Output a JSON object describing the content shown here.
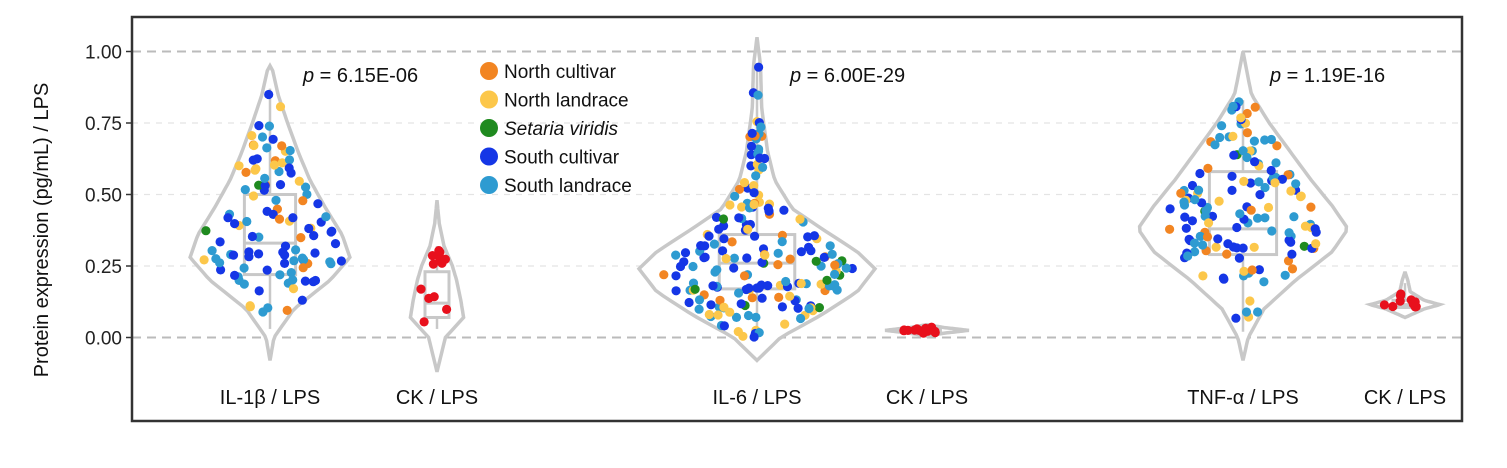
{
  "chart_data": {
    "type": "violin",
    "ylabel": "Protein expression (pg/mL) / LPS",
    "ylim": [
      -0.3,
      1.1
    ],
    "yticks": [
      "0.00",
      "0.25",
      "0.50",
      "0.75",
      "1.00"
    ],
    "reference_lines": [
      0.0,
      1.0
    ],
    "grid": "horizontal dashed",
    "legend": {
      "placement": "top",
      "entries": [
        {
          "label": "North cultivar",
          "color": "#f28522",
          "italic": false
        },
        {
          "label": "North landrace",
          "color": "#fcc74a",
          "italic": false
        },
        {
          "label": "Setaria viridis",
          "color": "#1f8a1f",
          "italic": true
        },
        {
          "label": "South cultivar",
          "color": "#1536e6",
          "italic": false
        },
        {
          "label": "South landrace",
          "color": "#2e9bd1",
          "italic": false
        }
      ]
    },
    "groups": [
      {
        "label": "IL-1β / LPS",
        "p_prefix": "p",
        "p_value": " = 6.15E-06",
        "range": [
          0.03,
          0.87
        ],
        "box": {
          "q1": 0.22,
          "median": 0.33,
          "q3": 0.5
        },
        "n": 110,
        "density": [
          [
            -0.08,
            0.0
          ],
          [
            0.0,
            0.05
          ],
          [
            0.1,
            0.3
          ],
          [
            0.2,
            0.75
          ],
          [
            0.28,
            1.0
          ],
          [
            0.36,
            0.9
          ],
          [
            0.45,
            0.7
          ],
          [
            0.55,
            0.5
          ],
          [
            0.65,
            0.35
          ],
          [
            0.75,
            0.22
          ],
          [
            0.85,
            0.1
          ],
          [
            0.95,
            0.02
          ]
        ]
      },
      {
        "label": "CK / LPS",
        "range": [
          0.03,
          0.32
        ],
        "box": {
          "q1": 0.07,
          "median": 0.12,
          "q3": 0.23
        },
        "n": 12,
        "density": [
          [
            -0.12,
            0.0
          ],
          [
            0.0,
            0.3
          ],
          [
            0.07,
            0.95
          ],
          [
            0.13,
            0.85
          ],
          [
            0.2,
            0.7
          ],
          [
            0.25,
            0.55
          ],
          [
            0.32,
            0.25
          ],
          [
            0.4,
            0.08
          ],
          [
            0.48,
            0.0
          ]
        ]
      },
      {
        "label": "IL-6 / LPS",
        "p_prefix": "p",
        "p_value": " = 6.00E-29",
        "range": [
          0.0,
          0.96
        ],
        "box": {
          "q1": 0.17,
          "median": 0.26,
          "q3": 0.36
        },
        "n": 185,
        "density": [
          [
            -0.08,
            0.0
          ],
          [
            0.0,
            0.2
          ],
          [
            0.08,
            0.55
          ],
          [
            0.16,
            0.85
          ],
          [
            0.24,
            1.0
          ],
          [
            0.3,
            0.85
          ],
          [
            0.38,
            0.55
          ],
          [
            0.45,
            0.3
          ],
          [
            0.55,
            0.15
          ],
          [
            0.65,
            0.09
          ],
          [
            0.8,
            0.04
          ],
          [
            0.95,
            0.03
          ],
          [
            1.05,
            0.0
          ]
        ]
      },
      {
        "label": "CK / LPS",
        "range": [
          0.015,
          0.04
        ],
        "box": {
          "q1": 0.02,
          "median": 0.025,
          "q3": 0.03
        },
        "n": 12,
        "density": [
          [
            0.005,
            0.0
          ],
          [
            0.015,
            0.4
          ],
          [
            0.025,
            1.0
          ],
          [
            0.035,
            0.4
          ],
          [
            0.045,
            0.0
          ]
        ]
      },
      {
        "label": "TNF-α / LPS",
        "p_prefix": "p",
        "p_value": " = 1.19E-16",
        "range": [
          0.02,
          0.83
        ],
        "box": {
          "q1": 0.29,
          "median": 0.38,
          "q3": 0.58
        },
        "n": 140,
        "density": [
          [
            -0.08,
            0.0
          ],
          [
            0.0,
            0.05
          ],
          [
            0.1,
            0.2
          ],
          [
            0.2,
            0.5
          ],
          [
            0.3,
            0.85
          ],
          [
            0.38,
            1.0
          ],
          [
            0.46,
            0.85
          ],
          [
            0.55,
            0.65
          ],
          [
            0.65,
            0.45
          ],
          [
            0.75,
            0.25
          ],
          [
            0.85,
            0.08
          ],
          [
            1.0,
            0.0
          ]
        ]
      },
      {
        "label": "CK / LPS",
        "range": [
          0.1,
          0.19
        ],
        "box": {
          "q1": 0.105,
          "median": 0.115,
          "q3": 0.13
        },
        "n": 10,
        "density": [
          [
            0.07,
            0.0
          ],
          [
            0.1,
            0.55
          ],
          [
            0.115,
            1.0
          ],
          [
            0.13,
            0.55
          ],
          [
            0.16,
            0.15
          ],
          [
            0.2,
            0.08
          ],
          [
            0.23,
            0.0
          ]
        ]
      }
    ]
  }
}
